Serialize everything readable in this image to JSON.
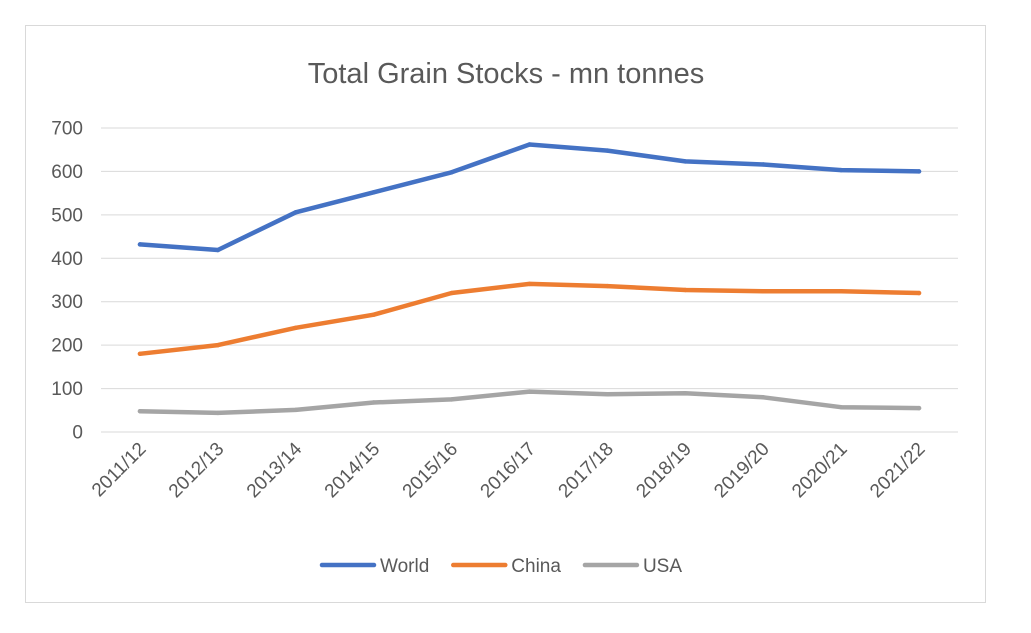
{
  "chart_data": {
    "type": "line",
    "title": "Total Grain Stocks - mn tonnes",
    "xlabel": "",
    "ylabel": "",
    "categories": [
      "2011/12",
      "2012/13",
      "2013/14",
      "2014/15",
      "2015/16",
      "2016/17",
      "2017/18",
      "2018/19",
      "2019/20",
      "2020/21",
      "2021/22"
    ],
    "ylim": [
      0,
      700
    ],
    "yticks": [
      0,
      100,
      200,
      300,
      400,
      500,
      600,
      700
    ],
    "grid": true,
    "legend_position": "bottom",
    "series": [
      {
        "name": "World",
        "color": "#4472c4",
        "values": [
          432,
          419,
          506,
          552,
          598,
          662,
          648,
          623,
          616,
          603,
          600
        ]
      },
      {
        "name": "China",
        "color": "#ed7d31",
        "values": [
          180,
          200,
          240,
          270,
          320,
          341,
          336,
          327,
          324,
          324,
          320
        ]
      },
      {
        "name": "USA",
        "color": "#a5a5a5",
        "values": [
          48,
          44,
          51,
          68,
          75,
          93,
          87,
          89,
          80,
          57,
          55
        ]
      }
    ]
  }
}
